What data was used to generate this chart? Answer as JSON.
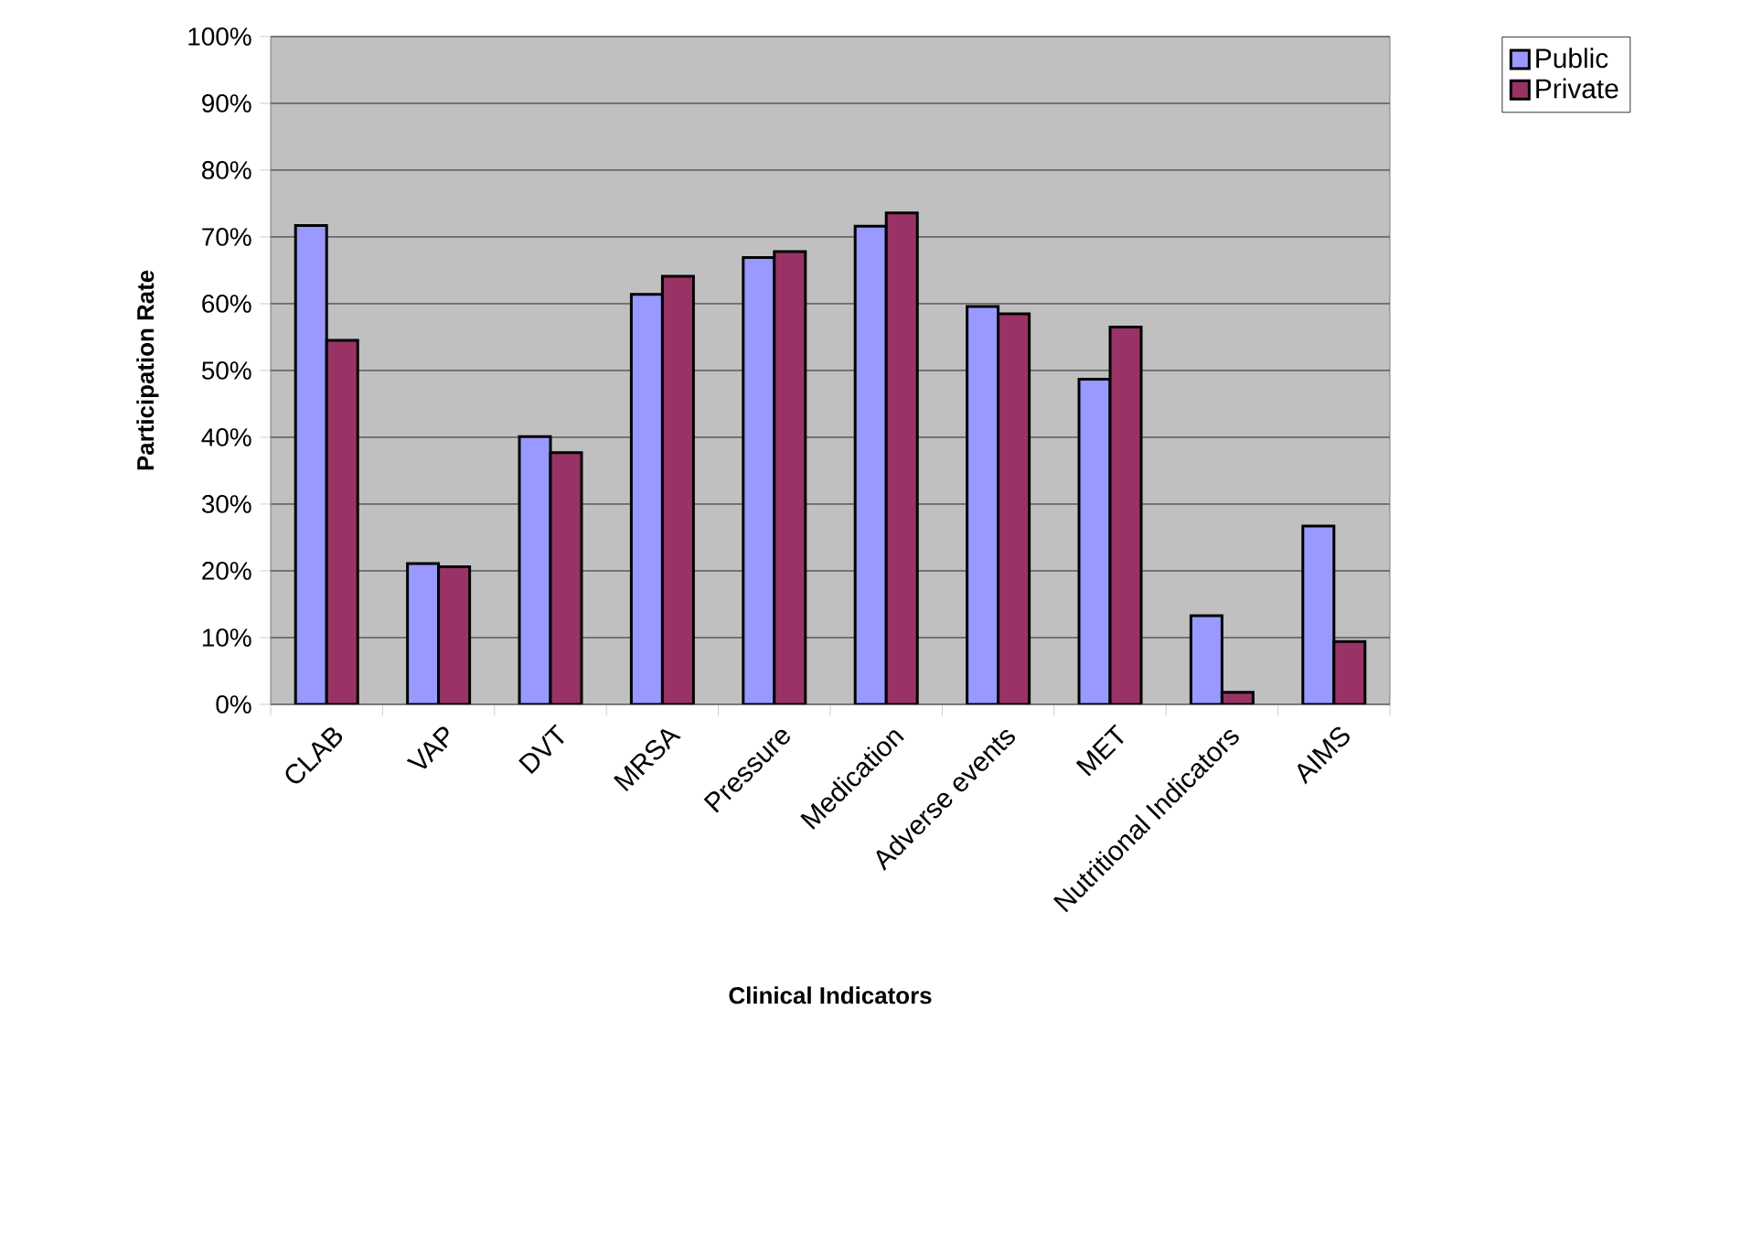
{
  "chart_data": {
    "type": "bar",
    "xlabel": "Clinical Indicators",
    "ylabel": "Participation Rate",
    "categories": [
      "CLAB",
      "VAP",
      "DVT",
      "MRSA",
      "Pressure",
      "Medication",
      "Adverse events",
      "MET",
      "Nutritional Indicators",
      "AIMS"
    ],
    "series": [
      {
        "name": "Public",
        "color": "#9999ff",
        "values": [
          71.7,
          21.1,
          40.1,
          61.4,
          66.9,
          71.6,
          59.6,
          48.7,
          13.3,
          26.7
        ]
      },
      {
        "name": "Private",
        "color": "#993366",
        "values": [
          54.5,
          20.6,
          37.7,
          64.1,
          67.8,
          73.6,
          58.5,
          56.5,
          1.8,
          9.4
        ]
      }
    ],
    "ylim": [
      0,
      100
    ],
    "yticks": [
      {
        "value": 0,
        "label": "0%"
      },
      {
        "value": 10,
        "label": "10%"
      },
      {
        "value": 20,
        "label": "20%"
      },
      {
        "value": 30,
        "label": "30%"
      },
      {
        "value": 40,
        "label": "40%"
      },
      {
        "value": 50,
        "label": "50%"
      },
      {
        "value": 60,
        "label": "60%"
      },
      {
        "value": 70,
        "label": "70%"
      },
      {
        "value": 80,
        "label": "80%"
      },
      {
        "value": 90,
        "label": "90%"
      },
      {
        "value": 100,
        "label": "100%"
      }
    ],
    "grid": "y",
    "legend": "top right"
  }
}
